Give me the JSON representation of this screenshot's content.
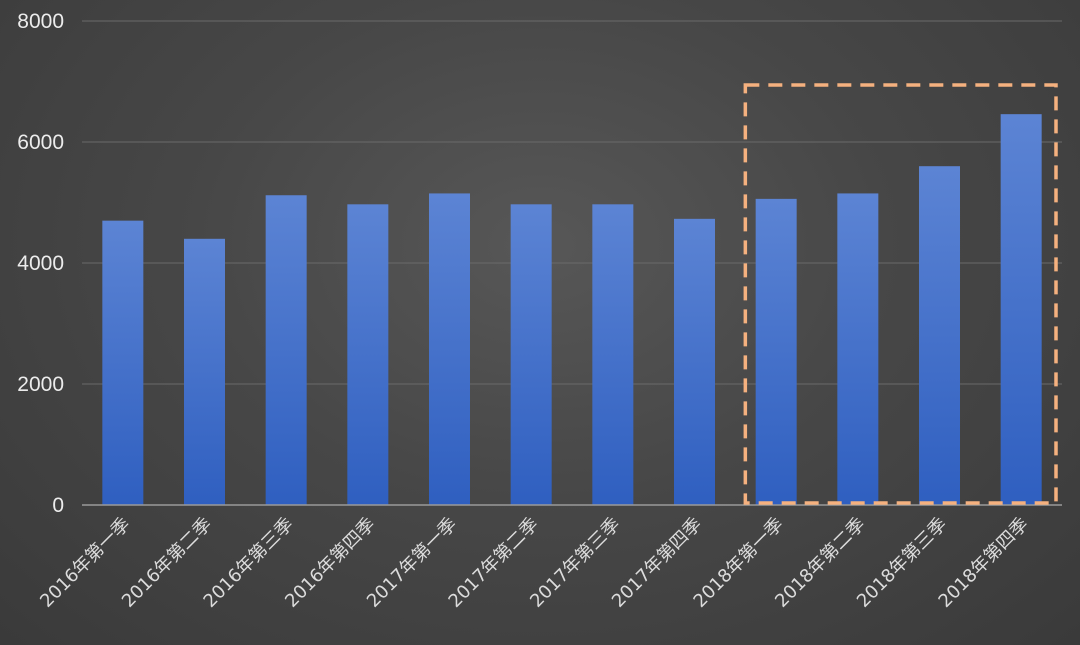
{
  "chart_data": {
    "type": "bar",
    "title": "",
    "xlabel": "",
    "ylabel": "",
    "ylim": [
      0,
      8000
    ],
    "yticks": [
      0,
      2000,
      4000,
      6000,
      8000
    ],
    "grid": true,
    "categories": [
      "2016年第一季",
      "2016年第二季",
      "2016年第三季",
      "2016年第四季",
      "2017年第一季",
      "2017年第二季",
      "2017年第三季",
      "2017年第四季",
      "2018年第一季",
      "2018年第二季",
      "2018年第三季",
      "2018年第四季"
    ],
    "values": [
      4700,
      4400,
      5120,
      4970,
      5150,
      4970,
      4970,
      4730,
      5060,
      5150,
      5600,
      6460
    ],
    "highlight": {
      "from_index": 8,
      "to_index": 11,
      "style": "dashed-box",
      "color": "#f5b17f"
    },
    "colors": {
      "bar_top": "#5c84d4",
      "bar_bottom": "#2f5fc0",
      "grid": "#6a6a6a",
      "axis": "#9a9a9a"
    }
  }
}
